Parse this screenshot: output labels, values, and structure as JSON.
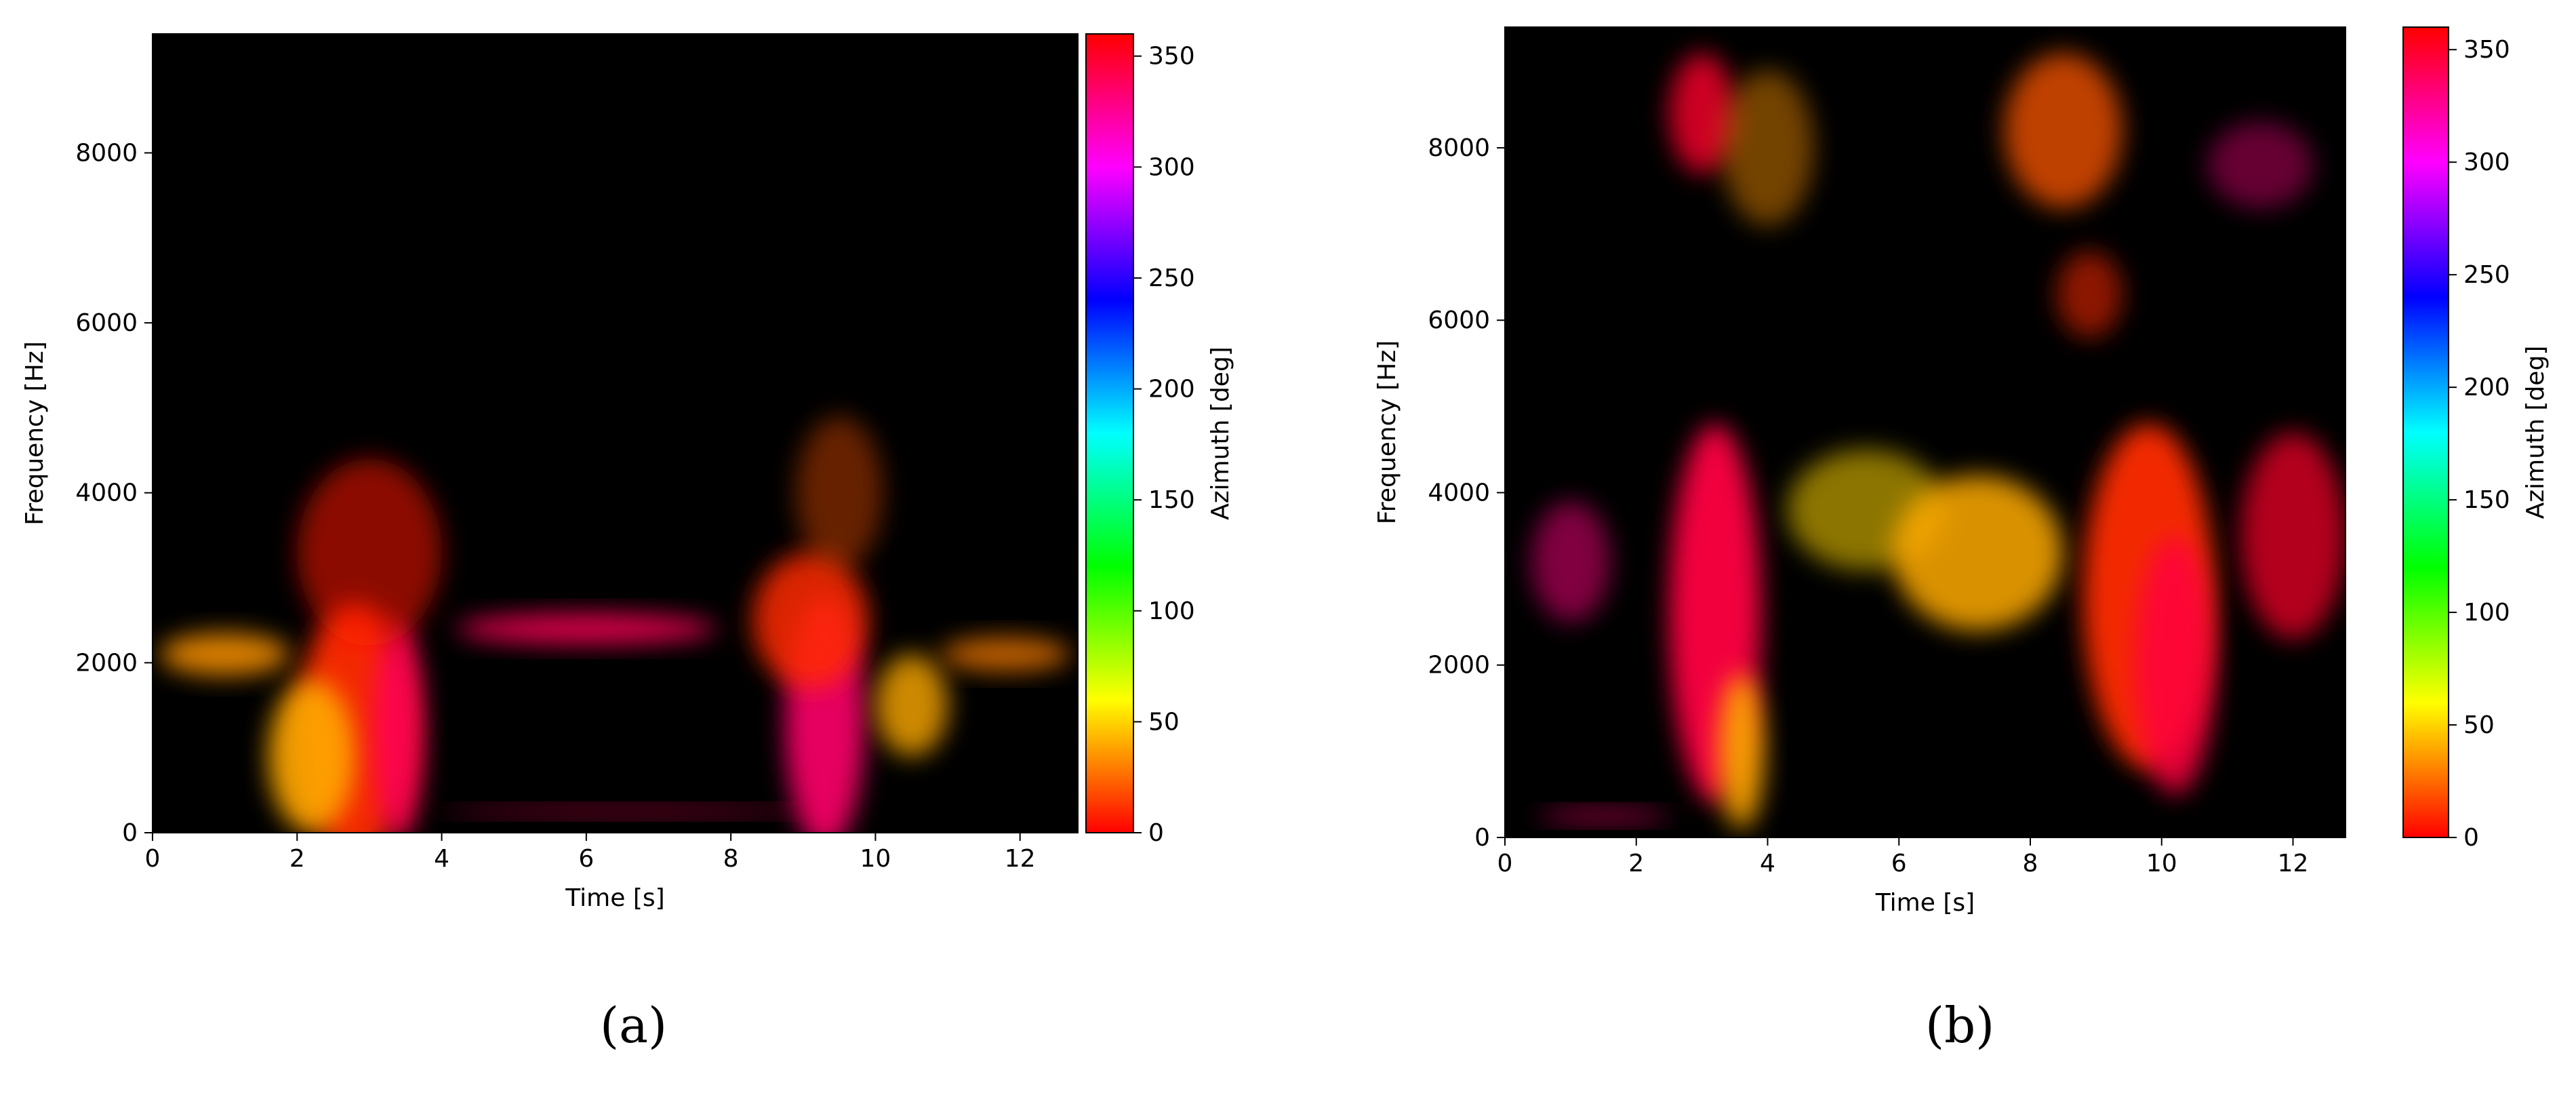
{
  "chart_data": [
    {
      "panel": "(a)",
      "type": "heatmap",
      "xlabel": "Time [s]",
      "ylabel": "Frequency [Hz]",
      "xlim": [
        0,
        12.8
      ],
      "ylim": [
        0,
        9400
      ],
      "xticks": [
        "0",
        "2",
        "4",
        "6",
        "8",
        "10",
        "12"
      ],
      "xtick_values": [
        0,
        2,
        4,
        6,
        8,
        10,
        12
      ],
      "yticks": [
        "0",
        "2000",
        "4000",
        "6000",
        "8000"
      ],
      "ytick_values": [
        0,
        2000,
        4000,
        6000,
        8000
      ],
      "colorbar": {
        "label": "Azimuth [deg]",
        "range": [
          0,
          360
        ],
        "ticks": [
          "0",
          "50",
          "100",
          "150",
          "200",
          "250",
          "300",
          "350"
        ],
        "tick_values": [
          0,
          50,
          100,
          150,
          200,
          250,
          300,
          350
        ],
        "colormap": "hsv"
      },
      "blobs": [
        {
          "t": 2.8,
          "f": 1200,
          "st": 0.8,
          "sf": 1500,
          "az": 10,
          "a": 0.95
        },
        {
          "t": 2.2,
          "f": 900,
          "st": 0.6,
          "sf": 900,
          "az": 40,
          "a": 0.9
        },
        {
          "t": 3.4,
          "f": 1200,
          "st": 0.35,
          "sf": 1300,
          "az": 340,
          "a": 0.9
        },
        {
          "t": 1.0,
          "f": 2100,
          "st": 0.9,
          "sf": 250,
          "az": 35,
          "a": 0.85
        },
        {
          "t": 3.0,
          "f": 3300,
          "st": 1.0,
          "sf": 1100,
          "az": 5,
          "a": 0.55
        },
        {
          "t": 6.0,
          "f": 2400,
          "st": 1.8,
          "sf": 180,
          "az": 340,
          "a": 0.85
        },
        {
          "t": 9.3,
          "f": 1300,
          "st": 0.55,
          "sf": 1500,
          "az": 335,
          "a": 0.9
        },
        {
          "t": 9.1,
          "f": 2500,
          "st": 0.8,
          "sf": 800,
          "az": 10,
          "a": 0.85
        },
        {
          "t": 10.5,
          "f": 1500,
          "st": 0.5,
          "sf": 600,
          "az": 40,
          "a": 0.8
        },
        {
          "t": 11.8,
          "f": 2100,
          "st": 0.9,
          "sf": 200,
          "az": 30,
          "a": 0.75
        },
        {
          "t": 9.5,
          "f": 4000,
          "st": 0.6,
          "sf": 900,
          "az": 20,
          "a": 0.4
        },
        {
          "t": 6.5,
          "f": 250,
          "st": 2.5,
          "sf": 60,
          "az": 340,
          "a": 0.6
        }
      ]
    },
    {
      "panel": "(b)",
      "type": "heatmap",
      "xlabel": "Time [s]",
      "ylabel": "Frequency [Hz]",
      "xlim": [
        0,
        12.8
      ],
      "ylim": [
        0,
        9400
      ],
      "xticks": [
        "0",
        "2",
        "4",
        "6",
        "8",
        "10",
        "12"
      ],
      "xtick_values": [
        0,
        2,
        4,
        6,
        8,
        10,
        12
      ],
      "yticks": [
        "0",
        "2000",
        "4000",
        "6000",
        "8000"
      ],
      "ytick_values": [
        0,
        2000,
        4000,
        6000,
        8000
      ],
      "colorbar": {
        "label": "Azimuth [deg]",
        "range": [
          0,
          360
        ],
        "ticks": [
          "0",
          "50",
          "100",
          "150",
          "200",
          "250",
          "300",
          "350"
        ],
        "tick_values": [
          0,
          50,
          100,
          150,
          200,
          250,
          300,
          350
        ],
        "colormap": "hsv"
      },
      "blobs": [
        {
          "t": 3.2,
          "f": 2600,
          "st": 0.7,
          "sf": 2200,
          "az": 345,
          "a": 0.95
        },
        {
          "t": 3.6,
          "f": 1000,
          "st": 0.35,
          "sf": 900,
          "az": 40,
          "a": 0.9
        },
        {
          "t": 5.5,
          "f": 3800,
          "st": 1.2,
          "sf": 700,
          "az": 50,
          "a": 0.55
        },
        {
          "t": 7.2,
          "f": 3300,
          "st": 1.3,
          "sf": 900,
          "az": 40,
          "a": 0.85
        },
        {
          "t": 9.8,
          "f": 2800,
          "st": 1.0,
          "sf": 2000,
          "az": 10,
          "a": 0.95
        },
        {
          "t": 10.2,
          "f": 2000,
          "st": 0.6,
          "sf": 1500,
          "az": 345,
          "a": 0.85
        },
        {
          "t": 12.0,
          "f": 3500,
          "st": 0.8,
          "sf": 1200,
          "az": 350,
          "a": 0.7
        },
        {
          "t": 3.0,
          "f": 8400,
          "st": 0.5,
          "sf": 700,
          "az": 350,
          "a": 0.8
        },
        {
          "t": 8.5,
          "f": 8200,
          "st": 0.9,
          "sf": 900,
          "az": 20,
          "a": 0.75
        },
        {
          "t": 4.0,
          "f": 8000,
          "st": 0.7,
          "sf": 900,
          "az": 35,
          "a": 0.45
        },
        {
          "t": 11.5,
          "f": 7800,
          "st": 0.8,
          "sf": 500,
          "az": 330,
          "a": 0.4
        },
        {
          "t": 1.0,
          "f": 3200,
          "st": 0.6,
          "sf": 700,
          "az": 330,
          "a": 0.5
        },
        {
          "t": 8.9,
          "f": 6300,
          "st": 0.5,
          "sf": 500,
          "az": 10,
          "a": 0.55
        },
        {
          "t": 1.5,
          "f": 250,
          "st": 1.0,
          "sf": 80,
          "az": 335,
          "a": 0.6
        }
      ]
    }
  ],
  "panels": {
    "a": {
      "label": "(a)"
    },
    "b": {
      "label": "(b)"
    }
  }
}
